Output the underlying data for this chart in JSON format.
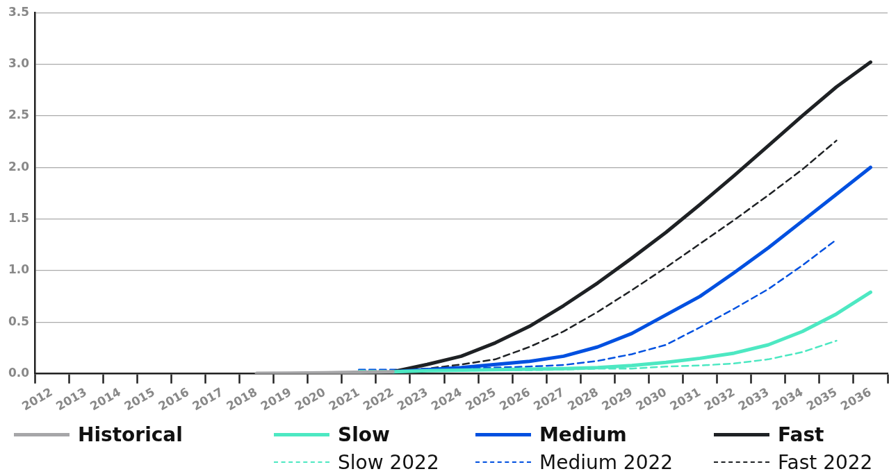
{
  "chart_data": {
    "type": "line",
    "categories": [
      "2012",
      "2013",
      "2014",
      "2015",
      "2016",
      "2017",
      "2018",
      "2019",
      "2020",
      "2021",
      "2022",
      "2023",
      "2024",
      "2025",
      "2026",
      "2027",
      "2028",
      "2029",
      "2030",
      "2031",
      "2032",
      "2033",
      "2034",
      "2035",
      "2036"
    ],
    "series": [
      {
        "name": "Historical",
        "color": "#a6a6a8",
        "line_style": "solid",
        "values": [
          null,
          null,
          null,
          null,
          null,
          null,
          0.005,
          0.007,
          0.01,
          0.015,
          0.02,
          null,
          null,
          null,
          null,
          null,
          null,
          null,
          null,
          null,
          null,
          null,
          null,
          null,
          null
        ]
      },
      {
        "name": "Slow",
        "color": "#4de8c2",
        "line_style": "solid",
        "values": [
          null,
          null,
          null,
          null,
          null,
          null,
          null,
          null,
          null,
          null,
          0.02,
          0.03,
          0.035,
          0.04,
          0.045,
          0.05,
          0.06,
          0.08,
          0.11,
          0.15,
          0.2,
          0.28,
          0.41,
          0.58,
          0.79
        ]
      },
      {
        "name": "Medium",
        "color": "#0050e0",
        "line_style": "solid",
        "values": [
          null,
          null,
          null,
          null,
          null,
          null,
          null,
          null,
          null,
          null,
          0.02,
          0.04,
          0.06,
          0.09,
          0.12,
          0.17,
          0.26,
          0.39,
          0.57,
          0.75,
          0.98,
          1.22,
          1.48,
          1.74,
          2.0
        ]
      },
      {
        "name": "Fast",
        "color": "#1e2124",
        "line_style": "solid",
        "values": [
          null,
          null,
          null,
          null,
          null,
          null,
          null,
          null,
          null,
          null,
          0.02,
          0.09,
          0.17,
          0.3,
          0.46,
          0.66,
          0.88,
          1.12,
          1.37,
          1.64,
          1.92,
          2.21,
          2.5,
          2.78,
          3.02
        ]
      },
      {
        "name": "Slow 2022",
        "color": "#4de8c2",
        "line_style": "dashed",
        "values": [
          null,
          null,
          null,
          null,
          null,
          null,
          null,
          null,
          null,
          0.03,
          0.03,
          0.03,
          0.03,
          0.035,
          0.035,
          0.04,
          0.05,
          0.05,
          0.07,
          0.08,
          0.1,
          0.14,
          0.21,
          0.32,
          null
        ]
      },
      {
        "name": "Medium 2022",
        "color": "#0050e0",
        "line_style": "dashed",
        "values": [
          null,
          null,
          null,
          null,
          null,
          null,
          null,
          null,
          null,
          0.04,
          0.04,
          0.045,
          0.05,
          0.06,
          0.07,
          0.085,
          0.125,
          0.19,
          0.28,
          0.45,
          0.63,
          0.82,
          1.05,
          1.3,
          null
        ]
      },
      {
        "name": "Fast 2022",
        "color": "#1e2124",
        "line_style": "dashed",
        "values": [
          null,
          null,
          null,
          null,
          null,
          null,
          null,
          null,
          null,
          0.03,
          0.03,
          0.05,
          0.09,
          0.14,
          0.26,
          0.41,
          0.6,
          0.81,
          1.03,
          1.26,
          1.49,
          1.73,
          1.98,
          2.26,
          null
        ]
      }
    ],
    "ylim": [
      0,
      3.5
    ],
    "yticks": [
      {
        "value": 0,
        "label": "0.0"
      },
      {
        "value": 0.5,
        "label": "0.5"
      },
      {
        "value": 1,
        "label": "1.0"
      },
      {
        "value": 1.5,
        "label": "1.5"
      },
      {
        "value": 2,
        "label": "2.0"
      },
      {
        "value": 2.5,
        "label": "2.5"
      },
      {
        "value": 3,
        "label": "3.0"
      },
      {
        "value": 3.5,
        "label": "3.5"
      }
    ],
    "grid": "y",
    "legend": "bottom",
    "marker": "none"
  }
}
